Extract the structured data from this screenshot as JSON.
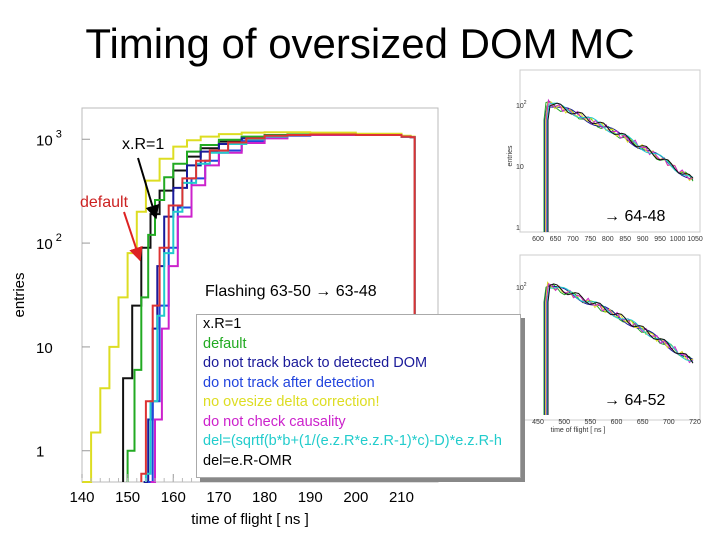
{
  "title": "Timing of oversized DOM MC",
  "chart_data": {
    "type": "line",
    "main": {
      "xlabel": "time of flight [ ns ]",
      "ylabel": "entries",
      "yscale": "log",
      "xlim": [
        140,
        218
      ],
      "ylim": [
        0.5,
        2000
      ],
      "x_ticks": [
        140,
        150,
        160,
        170,
        180,
        190,
        200,
        210
      ],
      "y_ticks": [
        {
          "base": "10",
          "exp": "3",
          "value": 1000
        },
        {
          "base": "10",
          "exp": "2",
          "value": 100
        },
        {
          "base": "10",
          "exp": "",
          "value": 10
        },
        {
          "base": "1",
          "exp": "",
          "value": 1
        }
      ],
      "series": [
        {
          "name": "x.R=1",
          "color": "#111111",
          "x": [
            149,
            151,
            153,
            155,
            157,
            160,
            163,
            166,
            170,
            175,
            180,
            185,
            190,
            200,
            210,
            212
          ],
          "y": [
            5,
            25,
            90,
            190,
            320,
            500,
            680,
            820,
            950,
            1040,
            1080,
            1100,
            1110,
            1100,
            1060,
            1050
          ]
        },
        {
          "name": "default",
          "color": "#22aa22",
          "x": [
            150,
            151.5,
            153,
            154.5,
            156,
            158,
            160,
            163,
            166,
            170,
            175,
            180,
            185,
            190,
            200,
            210,
            212
          ],
          "y": [
            1,
            6,
            30,
            120,
            260,
            430,
            580,
            760,
            880,
            990,
            1060,
            1100,
            1110,
            1110,
            1100,
            1060,
            1050
          ]
        },
        {
          "name": "do not track back to detected DOM",
          "color": "#1a1a99",
          "x": [
            153.5,
            154.5,
            155.5,
            156.5,
            158,
            160,
            163,
            166,
            170,
            175,
            180,
            185,
            190,
            200,
            210,
            212
          ],
          "y": [
            0.5,
            2,
            15,
            60,
            180,
            340,
            560,
            760,
            900,
            1020,
            1080,
            1100,
            1110,
            1100,
            1060,
            1050
          ]
        },
        {
          "name": "do not track after detection",
          "color": "#2244dd",
          "x": [
            154.5,
            155.5,
            157,
            159,
            161,
            164,
            167,
            170,
            175,
            180,
            185,
            190,
            200,
            210,
            212
          ],
          "y": [
            0.5,
            3,
            25,
            90,
            220,
            420,
            620,
            780,
            960,
            1040,
            1080,
            1100,
            1100,
            1060,
            1050
          ]
        },
        {
          "name": "no ovesize delta correction!",
          "color": "#dddd22",
          "x": [
            140,
            142,
            144,
            146,
            148,
            150,
            152,
            154,
            157,
            160,
            163,
            166,
            170,
            175,
            180,
            185,
            190,
            200,
            210,
            212
          ],
          "y": [
            0.5,
            1.5,
            4,
            10,
            30,
            80,
            200,
            400,
            650,
            850,
            980,
            1060,
            1120,
            1160,
            1170,
            1170,
            1160,
            1130,
            1080,
            1060
          ]
        },
        {
          "name": "do not check causality",
          "color": "#cc22cc",
          "x": [
            155,
            156,
            157.5,
            159,
            161,
            164,
            167,
            170,
            175,
            180,
            185,
            190,
            200,
            210,
            212
          ],
          "y": [
            0.5,
            2,
            15,
            60,
            180,
            360,
            560,
            740,
            920,
            1020,
            1080,
            1100,
            1100,
            1060,
            1050
          ]
        },
        {
          "name": "del=(sqrtf(b*b+(1/(e.z.R*e.z.R-1)*c)-D)*e.z.R-h",
          "color": "#22cccc",
          "x": [
            154,
            155,
            156.5,
            158,
            160,
            162,
            165,
            168,
            172,
            176,
            180,
            185,
            190,
            200,
            210,
            212
          ],
          "y": [
            0.6,
            3,
            20,
            80,
            200,
            380,
            580,
            740,
            900,
            1000,
            1060,
            1090,
            1110,
            1100,
            1060,
            1050
          ]
        },
        {
          "name": "del=e.R-OMR",
          "color": "#dd3333",
          "x": [
            153,
            154,
            155.5,
            157,
            159,
            162,
            165,
            168,
            172,
            176,
            180,
            185,
            190,
            200,
            210,
            212
          ],
          "y": [
            0.6,
            3,
            25,
            90,
            230,
            420,
            620,
            780,
            930,
            1020,
            1080,
            1100,
            1110,
            1100,
            1060,
            1050
          ]
        }
      ]
    },
    "inset_top": {
      "xlabel": "",
      "ylabel": "entries",
      "x_ticks": [
        600,
        650,
        700,
        750,
        800,
        850,
        900,
        950,
        1000,
        1050
      ],
      "y_ticks": [
        {
          "base": "10",
          "exp": "2"
        },
        {
          "base": "10",
          "exp": ""
        },
        {
          "base": "1",
          "exp": ""
        }
      ]
    },
    "inset_bottom": {
      "xlabel": "time of flight [ ns ]",
      "ylabel": "entries",
      "x_ticks": [
        450,
        500,
        550,
        600,
        650,
        700,
        720
      ],
      "y_ticks": [
        {
          "base": "10",
          "exp": "2"
        },
        {
          "base": "10",
          "exp": ""
        }
      ]
    }
  },
  "annotations": {
    "xr1": "x.R=1",
    "default": "default",
    "flashing": "Flashing 63-50 → 63-48",
    "arrow_6448": "→ 64-48",
    "arrow_6452": "→ 64-52"
  },
  "legend": [
    {
      "text": "x.R=1",
      "color": "#000000"
    },
    {
      "text": "default",
      "color": "#22aa22"
    },
    {
      "text": "do not track back to detected DOM",
      "color": "#1a1a99"
    },
    {
      "text": "do not track after detection",
      "color": "#2244dd"
    },
    {
      "text": "no ovesize delta correction!",
      "color": "#dddd22"
    },
    {
      "text": "do not check causality",
      "color": "#cc22cc"
    },
    {
      "text": "del=(sqrtf(b*b+(1/(e.z.R*e.z.R-1)*c)-D)*e.z.R-h",
      "color": "#22cccc"
    },
    {
      "text": "del=e.R-OMR",
      "color": "#000000"
    }
  ]
}
